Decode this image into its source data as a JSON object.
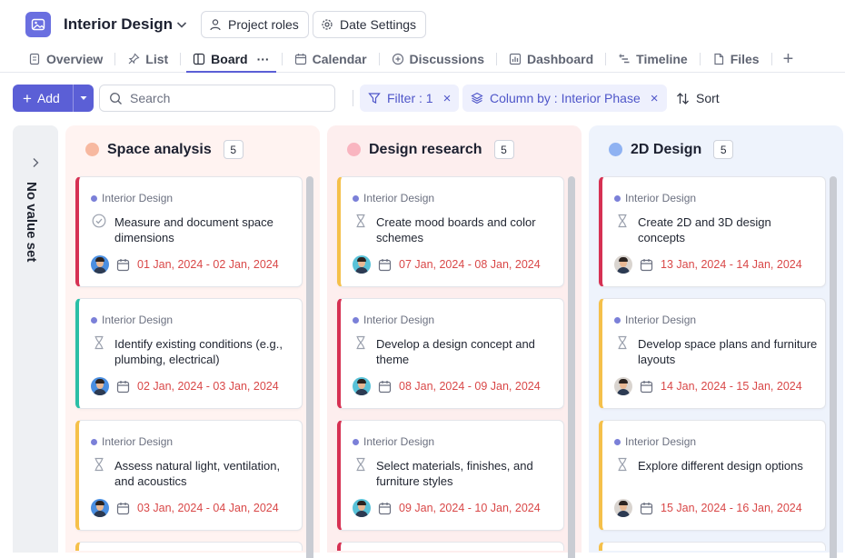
{
  "project": {
    "title": "Interior Design"
  },
  "header": {
    "project_roles": "Project roles",
    "date_settings": "Date Settings"
  },
  "tabs": [
    {
      "label": "Overview",
      "icon": "document-icon"
    },
    {
      "label": "List",
      "icon": "pin-icon"
    },
    {
      "label": "Board",
      "icon": "board-icon",
      "active": true
    },
    {
      "label": "Calendar",
      "icon": "calendar-icon"
    },
    {
      "label": "Discussions",
      "icon": "chat-icon"
    },
    {
      "label": "Dashboard",
      "icon": "chart-icon"
    },
    {
      "label": "Timeline",
      "icon": "timeline-icon"
    },
    {
      "label": "Files",
      "icon": "file-icon"
    }
  ],
  "toolbar": {
    "add_label": "Add",
    "search_placeholder": "Search",
    "filter_label": "Filter : 1",
    "column_by_label": "Column by : Interior Phase",
    "sort_label": "Sort"
  },
  "no_value": {
    "label": "No value set"
  },
  "colors": {
    "accent": "#5b5fd6",
    "date_red": "#d94848",
    "priority_red": "#d63153",
    "priority_teal": "#2bbfa6",
    "priority_yellow": "#f5c04a"
  },
  "columns": [
    {
      "title": "Space analysis",
      "count": "5",
      "dot": "#f7b8a0",
      "bg": "#fff3f1",
      "cards": [
        {
          "tag": "Interior Design",
          "title": "Measure and document space dimensions",
          "date": "01 Jan, 2024 - 02 Jan, 2024",
          "bar": "#d63153",
          "status": "check-circle-icon"
        },
        {
          "tag": "Interior Design",
          "title": "Identify existing conditions (e.g., plumbing, electrical)",
          "date": "02 Jan, 2024 - 03 Jan, 2024",
          "bar": "#2bbfa6",
          "status": "hourglass-icon"
        },
        {
          "tag": "Interior Design",
          "title": "Assess natural light, ventilation, and acoustics",
          "date": "03 Jan, 2024 - 04 Jan, 2024",
          "bar": "#f5c04a",
          "status": "hourglass-icon"
        }
      ]
    },
    {
      "title": "Design research",
      "count": "5",
      "dot": "#f9b5c0",
      "bg": "#fdeeee",
      "cards": [
        {
          "tag": "Interior Design",
          "title": "Create mood boards and color schemes",
          "date": "07 Jan, 2024 - 08 Jan, 2024",
          "bar": "#f5c04a",
          "status": "hourglass-icon"
        },
        {
          "tag": "Interior Design",
          "title": "Develop a design concept and theme",
          "date": "08 Jan, 2024 - 09 Jan, 2024",
          "bar": "#d63153",
          "status": "hourglass-icon"
        },
        {
          "tag": "Interior Design",
          "title": "Select materials, finishes, and furniture styles",
          "date": "09 Jan, 2024 - 10 Jan, 2024",
          "bar": "#d63153",
          "status": "hourglass-icon"
        }
      ]
    },
    {
      "title": "2D Design",
      "count": "5",
      "dot": "#8fb2f2",
      "bg": "#eef3fc",
      "cards": [
        {
          "tag": "Interior Design",
          "title": "Create 2D and 3D design concepts",
          "date": "13 Jan, 2024 - 14 Jan, 2024",
          "bar": "#d63153",
          "status": "hourglass-icon"
        },
        {
          "tag": "Interior Design",
          "title": "Develop space plans and furniture layouts",
          "date": "14 Jan, 2024 - 15 Jan, 2024",
          "bar": "#f5c04a",
          "status": "hourglass-icon"
        },
        {
          "tag": "Interior Design",
          "title": "Explore different design options",
          "date": "15 Jan, 2024 - 16 Jan, 2024",
          "bar": "#f5c04a",
          "status": "hourglass-icon"
        }
      ]
    }
  ]
}
